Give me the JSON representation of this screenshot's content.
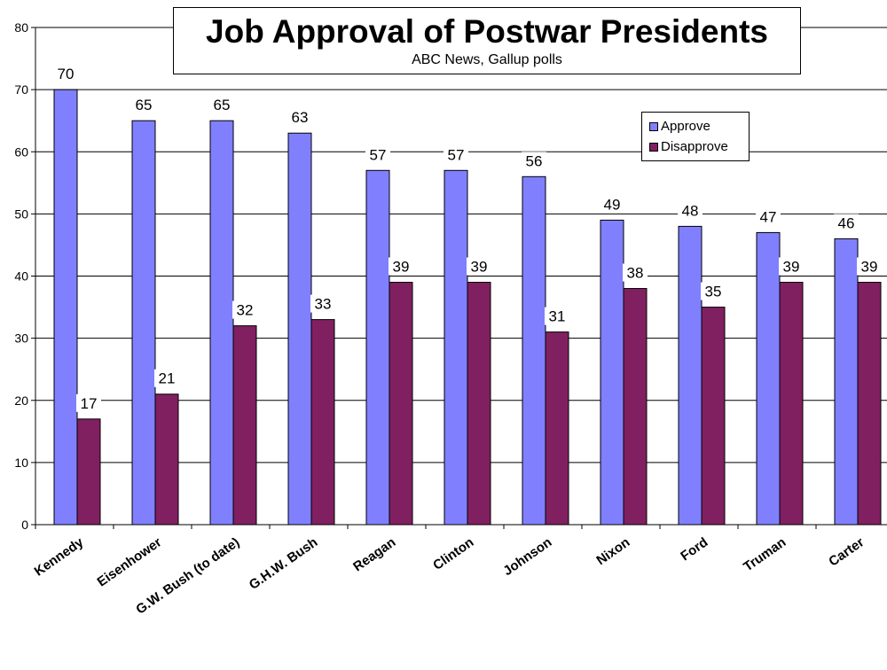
{
  "chart_data": {
    "type": "bar",
    "title": "Job Approval of Postwar Presidents",
    "subtitle": "ABC News, Gallup polls",
    "categories": [
      "Kennedy",
      "Eisenhower",
      "G.W. Bush (to date)",
      "G.H.W. Bush",
      "Reagan",
      "Clinton",
      "Johnson",
      "Nixon",
      "Ford",
      "Truman",
      "Carter"
    ],
    "series": [
      {
        "name": "Approve",
        "color": "#8080ff",
        "values": [
          70,
          65,
          65,
          63,
          57,
          57,
          56,
          49,
          48,
          47,
          46
        ]
      },
      {
        "name": "Disapprove",
        "color": "#802060",
        "values": [
          17,
          21,
          32,
          33,
          39,
          39,
          31,
          38,
          35,
          39,
          39
        ]
      }
    ],
    "ylim": [
      0,
      80
    ],
    "yticks": [
      0,
      10,
      20,
      30,
      40,
      50,
      60,
      70,
      80
    ],
    "grid": true,
    "legend_position": "top-right",
    "data_labels": true
  }
}
